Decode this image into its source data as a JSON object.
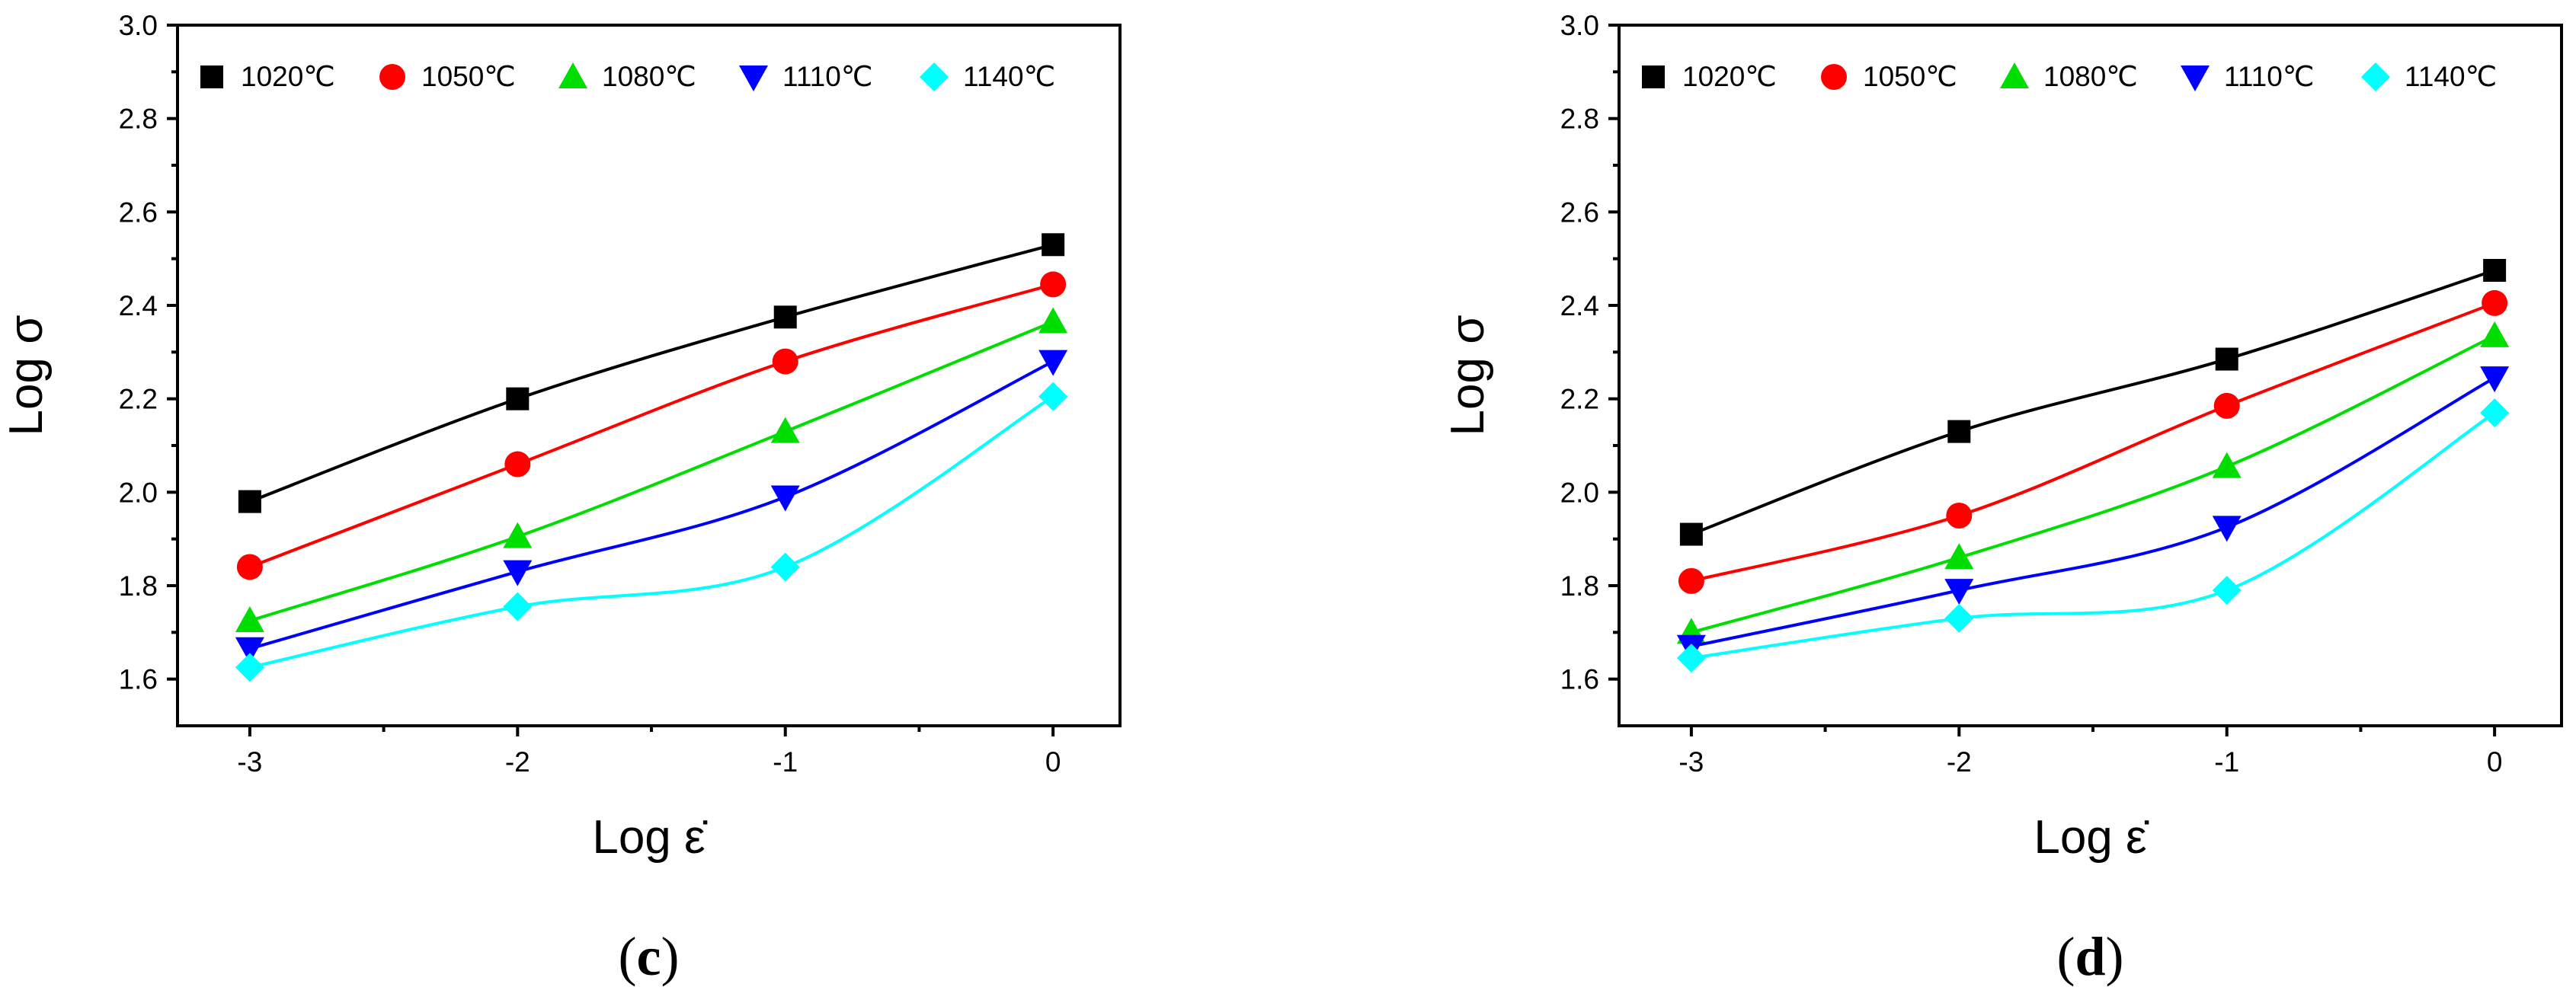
{
  "chart_data": [
    {
      "type": "line",
      "panel_label": "c",
      "xlabel": "Log ε̇",
      "ylabel": "Log σ",
      "xlim": [
        -3.27,
        0.25
      ],
      "ylim": [
        1.5,
        3.0
      ],
      "xticks": [
        -3,
        -2,
        -1,
        0
      ],
      "yticks": [
        1.6,
        1.8,
        2.0,
        2.2,
        2.4,
        2.6,
        2.8,
        3.0
      ],
      "legend_position": "top",
      "x": [
        -3,
        -2,
        -1,
        0
      ],
      "series": [
        {
          "name": "1020℃",
          "color": "#000000",
          "marker": "square",
          "values": [
            1.98,
            2.2,
            2.375,
            2.53
          ]
        },
        {
          "name": "1050℃",
          "color": "#ff0000",
          "marker": "circle",
          "values": [
            1.84,
            2.06,
            2.28,
            2.445
          ]
        },
        {
          "name": "1080℃",
          "color": "#00dd00",
          "marker": "triangle-up",
          "values": [
            1.725,
            1.905,
            2.13,
            2.365
          ]
        },
        {
          "name": "1110℃",
          "color": "#0000ff",
          "marker": "triangle-down",
          "values": [
            1.665,
            1.83,
            1.99,
            2.28
          ]
        },
        {
          "name": "1140℃",
          "color": "#00ffff",
          "marker": "diamond",
          "values": [
            1.625,
            1.755,
            1.84,
            2.205
          ]
        }
      ]
    },
    {
      "type": "line",
      "panel_label": "d",
      "xlabel": "Log ε̇",
      "ylabel": "Log σ",
      "xlim": [
        -3.27,
        0.25
      ],
      "ylim": [
        1.5,
        3.0
      ],
      "xticks": [
        -3,
        -2,
        -1,
        0
      ],
      "yticks": [
        1.6,
        1.8,
        2.0,
        2.2,
        2.4,
        2.6,
        2.8,
        3.0
      ],
      "legend_position": "top",
      "x": [
        -3,
        -2,
        -1,
        0
      ],
      "series": [
        {
          "name": "1020℃",
          "color": "#000000",
          "marker": "square",
          "values": [
            1.91,
            2.13,
            2.285,
            2.475
          ]
        },
        {
          "name": "1050℃",
          "color": "#ff0000",
          "marker": "circle",
          "values": [
            1.81,
            1.95,
            2.185,
            2.405
          ]
        },
        {
          "name": "1080℃",
          "color": "#00dd00",
          "marker": "triangle-up",
          "values": [
            1.7,
            1.86,
            2.055,
            2.335
          ]
        },
        {
          "name": "1110℃",
          "color": "#0000ff",
          "marker": "triangle-down",
          "values": [
            1.67,
            1.79,
            1.925,
            2.245
          ]
        },
        {
          "name": "1140℃",
          "color": "#00ffff",
          "marker": "diamond",
          "values": [
            1.645,
            1.73,
            1.79,
            2.17
          ]
        }
      ]
    }
  ]
}
